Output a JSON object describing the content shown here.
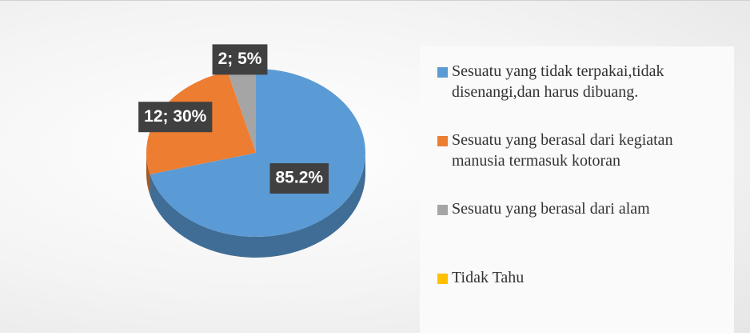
{
  "chart_data": {
    "type": "pie3d",
    "categories": [
      "Sesuatu yang tidak terpakai,tidak disenangi,dan harus dibuang.",
      "Sesuatu yang berasal dari kegiatan manusia termasuk kotoran",
      "Sesuatu yang berasal dari alam",
      "Tidak Tahu"
    ],
    "values": [
      85.2,
      30,
      5,
      0
    ],
    "value_labels": [
      "85.2%",
      "12; 30%",
      "2; 5%",
      null
    ],
    "colors": [
      "#5b9bd5",
      "#ed7d31",
      "#a5a5a5",
      "#ffc000"
    ],
    "legend": "right"
  }
}
